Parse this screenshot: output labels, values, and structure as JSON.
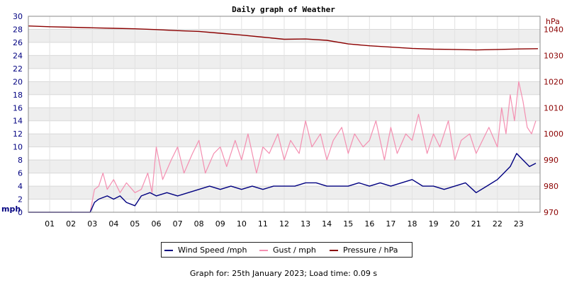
{
  "chart_data": {
    "type": "line",
    "title": "Daily graph of Weather",
    "left_axis": {
      "unit_label": "mph",
      "range": [
        0,
        30
      ],
      "ticks": [
        0,
        2,
        4,
        6,
        8,
        10,
        12,
        14,
        16,
        18,
        20,
        22,
        24,
        26,
        28,
        30
      ]
    },
    "right_axis": {
      "unit_label": "hPa",
      "range": [
        970,
        1045
      ],
      "ticks": [
        970,
        980,
        990,
        1000,
        1010,
        1020,
        1030,
        1040
      ]
    },
    "x_axis": {
      "ticks": [
        "01",
        "02",
        "03",
        "04",
        "05",
        "06",
        "07",
        "08",
        "09",
        "10",
        "11",
        "12",
        "13",
        "14",
        "15",
        "16",
        "17",
        "18",
        "19",
        "20",
        "21",
        "22",
        "23"
      ],
      "range_hours": [
        0,
        24
      ]
    },
    "grid": "horizontal bands",
    "legend_placement": "bottom",
    "series": [
      {
        "name": "Wind Speed /mph",
        "color": "#000080",
        "axis": "left",
        "x_hours": [
          0,
          1,
          2,
          2.9,
          3.1,
          3.3,
          3.7,
          4.0,
          4.3,
          4.6,
          5.0,
          5.3,
          5.7,
          6.0,
          6.5,
          7.0,
          7.5,
          8.0,
          8.5,
          9.0,
          9.5,
          10.0,
          10.5,
          11.0,
          11.5,
          12.0,
          12.5,
          13.0,
          13.5,
          14.0,
          14.5,
          15.0,
          15.5,
          16.0,
          16.5,
          17.0,
          17.5,
          18.0,
          18.5,
          19.0,
          19.5,
          20.0,
          20.5,
          21.0,
          21.5,
          22.0,
          22.3,
          22.6,
          22.9,
          23.2,
          23.5,
          23.8
        ],
        "values": [
          0,
          0,
          0,
          0,
          1.5,
          2,
          2.5,
          2,
          2.5,
          1.5,
          1,
          2.5,
          3,
          2.5,
          3,
          2.5,
          3,
          3.5,
          4,
          3.5,
          4,
          3.5,
          4,
          3.5,
          4,
          4,
          4,
          4.5,
          4.5,
          4,
          4,
          4,
          4.5,
          4,
          4.5,
          4,
          4.5,
          5,
          4,
          4,
          3.5,
          4,
          4.5,
          3,
          4,
          5,
          6,
          7,
          9,
          8,
          7,
          7.5
        ]
      },
      {
        "name": "Gust / mph",
        "color": "#f48fb1",
        "axis": "left",
        "x_hours": [
          0,
          1,
          2,
          2.9,
          3.1,
          3.3,
          3.5,
          3.7,
          4.0,
          4.3,
          4.6,
          5.0,
          5.3,
          5.6,
          5.8,
          6.0,
          6.3,
          6.7,
          7.0,
          7.3,
          7.7,
          8.0,
          8.3,
          8.7,
          9.0,
          9.3,
          9.7,
          10.0,
          10.3,
          10.7,
          11.0,
          11.3,
          11.7,
          12.0,
          12.3,
          12.7,
          13.0,
          13.3,
          13.7,
          14.0,
          14.3,
          14.7,
          15.0,
          15.3,
          15.7,
          16.0,
          16.3,
          16.7,
          17.0,
          17.3,
          17.7,
          18.0,
          18.3,
          18.7,
          19.0,
          19.3,
          19.7,
          20.0,
          20.3,
          20.7,
          21.0,
          21.3,
          21.6,
          22.0,
          22.2,
          22.4,
          22.6,
          22.8,
          23.0,
          23.2,
          23.4,
          23.6,
          23.8
        ],
        "values": [
          0,
          0,
          0,
          0,
          3.5,
          4,
          6,
          3.5,
          5,
          3,
          4.5,
          3,
          3.5,
          6,
          3,
          10,
          5,
          8,
          10,
          6,
          9,
          11,
          6,
          9,
          10,
          7,
          11,
          8,
          12,
          6,
          10,
          9,
          12,
          8,
          11,
          9,
          14,
          10,
          12,
          8,
          11,
          13,
          9,
          12,
          10,
          11,
          14,
          8,
          13,
          9,
          12,
          11,
          15,
          9,
          12,
          10,
          14,
          8,
          11,
          12,
          9,
          11,
          13,
          10,
          16,
          12,
          18,
          14,
          20,
          17,
          13,
          12,
          14
        ]
      },
      {
        "name": "Pressure / hPa",
        "color": "#8b0000",
        "axis": "right",
        "x_hours": [
          0,
          1,
          2,
          3,
          4,
          5,
          6,
          7,
          8,
          9,
          10,
          11,
          12,
          13,
          14,
          15,
          16,
          17,
          18,
          19,
          20,
          21,
          22,
          23,
          23.9
        ],
        "values": [
          1041.3,
          1041,
          1040.8,
          1040.6,
          1040.4,
          1040.2,
          1039.9,
          1039.5,
          1039.2,
          1038.5,
          1037.8,
          1037,
          1036.2,
          1036.3,
          1035.8,
          1034.4,
          1033.7,
          1033.2,
          1032.7,
          1032.4,
          1032.3,
          1032.1,
          1032.3,
          1032.5,
          1032.6
        ]
      }
    ]
  },
  "legend": [
    {
      "label": "Wind Speed /mph",
      "color": "#000080"
    },
    {
      "label": "Gust / mph",
      "color": "#f48fb1"
    },
    {
      "label": "Pressure / hPa",
      "color": "#8b0000"
    }
  ],
  "footer": "Graph for: 25th January 2023; Load time: 0.09 s"
}
